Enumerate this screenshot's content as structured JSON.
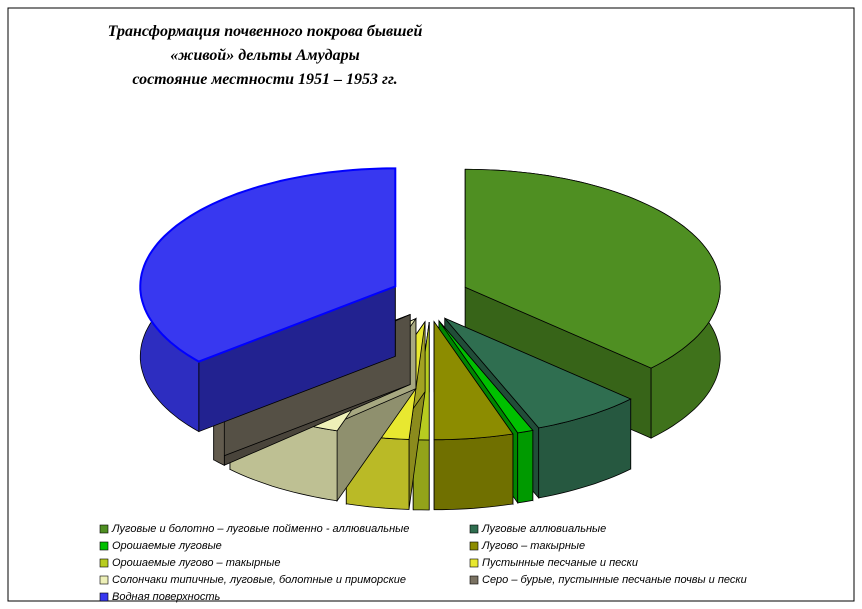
{
  "chart_data": {
    "type": "pie",
    "title": [
      "Трансформация почвенного покрова бывшей",
      "«живой» дельты Амудары",
      "состояние местности 1951 – 1953 гг."
    ],
    "categories": [
      "Луговые и болотно – луговые пойменно - аллювиальные",
      "Луговые аллювиальные",
      "Орошаемые луговые",
      "Лугово – такырные",
      "Орошаемые лугово – такырные",
      "Пустынные песчаные и пески",
      "Солончаки типичные, луговые, болотные и приморские",
      "Серо – бурые, пустынные песчаные почвы и пески",
      "Водная поверхность"
    ],
    "values": [
      37,
      7,
      1,
      5,
      1,
      4,
      8,
      1,
      36
    ],
    "colors": [
      "#4f8f22",
      "#2f6e50",
      "#00c000",
      "#8c8c00",
      "#b8cc20",
      "#e8e830",
      "#eef0b8",
      "#7a7262",
      "#3838f0"
    ]
  }
}
